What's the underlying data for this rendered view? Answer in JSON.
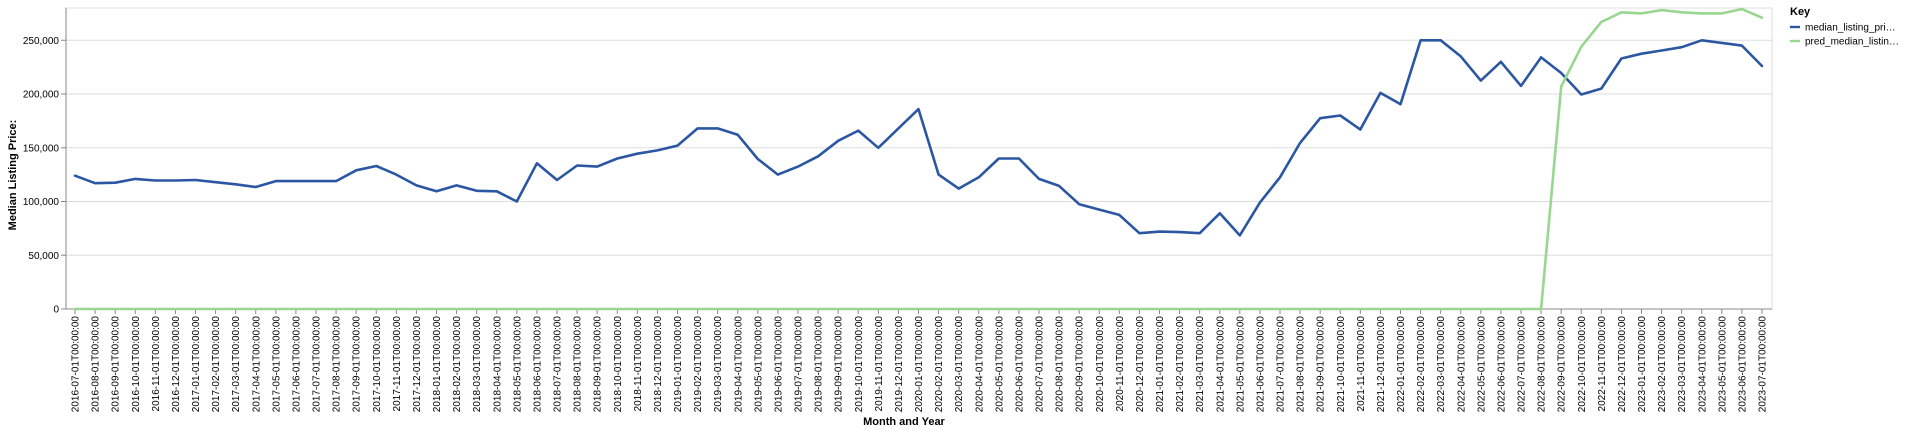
{
  "chart_data": {
    "type": "line",
    "title": "",
    "xlabel": "Month and Year",
    "ylabel": "Median Listing Price:",
    "ylim": [
      0,
      280000
    ],
    "y_ticks": [
      "0",
      "50,000",
      "100,000",
      "150,000",
      "200,000",
      "250,000"
    ],
    "y_tick_values": [
      0,
      50000,
      100000,
      150000,
      200000,
      250000
    ],
    "grid": true,
    "legend": {
      "title": "Key",
      "placement": "right",
      "entries": [
        "median_listing_pri…",
        "pred_median_listin…"
      ]
    },
    "x": [
      "2016-07-01T00:00:00",
      "2016-08-01T00:00:00",
      "2016-09-01T00:00:00",
      "2016-10-01T00:00:00",
      "2016-11-01T00:00:00",
      "2016-12-01T00:00:00",
      "2017-01-01T00:00:00",
      "2017-02-01T00:00:00",
      "2017-03-01T00:00:00",
      "2017-04-01T00:00:00",
      "2017-05-01T00:00:00",
      "2017-06-01T00:00:00",
      "2017-07-01T00:00:00",
      "2017-08-01T00:00:00",
      "2017-09-01T00:00:00",
      "2017-10-01T00:00:00",
      "2017-11-01T00:00:00",
      "2017-12-01T00:00:00",
      "2018-01-01T00:00:00",
      "2018-02-01T00:00:00",
      "2018-03-01T00:00:00",
      "2018-04-01T00:00:00",
      "2018-05-01T00:00:00",
      "2018-06-01T00:00:00",
      "2018-07-01T00:00:00",
      "2018-08-01T00:00:00",
      "2018-09-01T00:00:00",
      "2018-10-01T00:00:00",
      "2018-11-01T00:00:00",
      "2018-12-01T00:00:00",
      "2019-01-01T00:00:00",
      "2019-02-01T00:00:00",
      "2019-03-01T00:00:00",
      "2019-04-01T00:00:00",
      "2019-05-01T00:00:00",
      "2019-06-01T00:00:00",
      "2019-07-01T00:00:00",
      "2019-08-01T00:00:00",
      "2019-09-01T00:00:00",
      "2019-10-01T00:00:00",
      "2019-11-01T00:00:00",
      "2019-12-01T00:00:00",
      "2020-01-01T00:00:00",
      "2020-02-01T00:00:00",
      "2020-03-01T00:00:00",
      "2020-04-01T00:00:00",
      "2020-05-01T00:00:00",
      "2020-06-01T00:00:00",
      "2020-07-01T00:00:00",
      "2020-08-01T00:00:00",
      "2020-09-01T00:00:00",
      "2020-10-01T00:00:00",
      "2020-11-01T00:00:00",
      "2020-12-01T00:00:00",
      "2021-01-01T00:00:00",
      "2021-02-01T00:00:00",
      "2021-03-01T00:00:00",
      "2021-04-01T00:00:00",
      "2021-05-01T00:00:00",
      "2021-06-01T00:00:00",
      "2021-07-01T00:00:00",
      "2021-08-01T00:00:00",
      "2021-09-01T00:00:00",
      "2021-10-01T00:00:00",
      "2021-11-01T00:00:00",
      "2021-12-01T00:00:00",
      "2022-01-01T00:00:00",
      "2022-02-01T00:00:00",
      "2022-03-01T00:00:00",
      "2022-04-01T00:00:00",
      "2022-05-01T00:00:00",
      "2022-06-01T00:00:00",
      "2022-07-01T00:00:00",
      "2022-08-01T00:00:00",
      "2022-09-01T00:00:00",
      "2022-10-01T00:00:00",
      "2022-11-01T00:00:00",
      "2022-12-01T00:00:00",
      "2023-01-01T00:00:00",
      "2023-02-01T00:00:00",
      "2023-03-01T00:00:00",
      "2023-04-01T00:00:00",
      "2023-05-01T00:00:00",
      "2023-06-01T00:00:00",
      "2023-07-01T00:00:00"
    ],
    "series": [
      {
        "name": "median_listing_pri…",
        "color": "#2b57a2",
        "values": [
          124000,
          117000,
          117500,
          121000,
          119500,
          119500,
          120000,
          118000,
          116000,
          113500,
          119000,
          119000,
          119000,
          119000,
          129000,
          133000,
          125000,
          115000,
          109500,
          115000,
          110000,
          109500,
          100000,
          135500,
          120000,
          133500,
          132500,
          140000,
          144500,
          147500,
          152000,
          168000,
          168000,
          162000,
          139500,
          125000,
          132500,
          142000,
          156500,
          166000,
          150000,
          168000,
          186000,
          125000,
          112000,
          122500,
          140000,
          140000,
          121000,
          114500,
          97500,
          92500,
          87500,
          70500,
          72000,
          71500,
          70500,
          89000,
          68500,
          99000,
          122500,
          154500,
          177500,
          180000,
          167000,
          201000,
          190500,
          250000,
          250000,
          235000,
          212500,
          230000,
          207500,
          234000,
          219500,
          199500,
          205000,
          233000,
          237500,
          240500,
          243500,
          250000,
          247500,
          245000,
          226000
        ]
      },
      {
        "name": "pred_median_listin…",
        "color": "#98d691",
        "values": [
          0,
          0,
          0,
          0,
          0,
          0,
          0,
          0,
          0,
          0,
          0,
          0,
          0,
          0,
          0,
          0,
          0,
          0,
          0,
          0,
          0,
          0,
          0,
          0,
          0,
          0,
          0,
          0,
          0,
          0,
          0,
          0,
          0,
          0,
          0,
          0,
          0,
          0,
          0,
          0,
          0,
          0,
          0,
          0,
          0,
          0,
          0,
          0,
          0,
          0,
          0,
          0,
          0,
          0,
          0,
          0,
          0,
          0,
          0,
          0,
          0,
          0,
          0,
          0,
          0,
          0,
          0,
          0,
          0,
          0,
          0,
          0,
          0,
          0,
          207000,
          244000,
          267000,
          276000,
          275000,
          278000,
          276000,
          275000,
          275000,
          279000,
          271000
        ]
      }
    ]
  }
}
